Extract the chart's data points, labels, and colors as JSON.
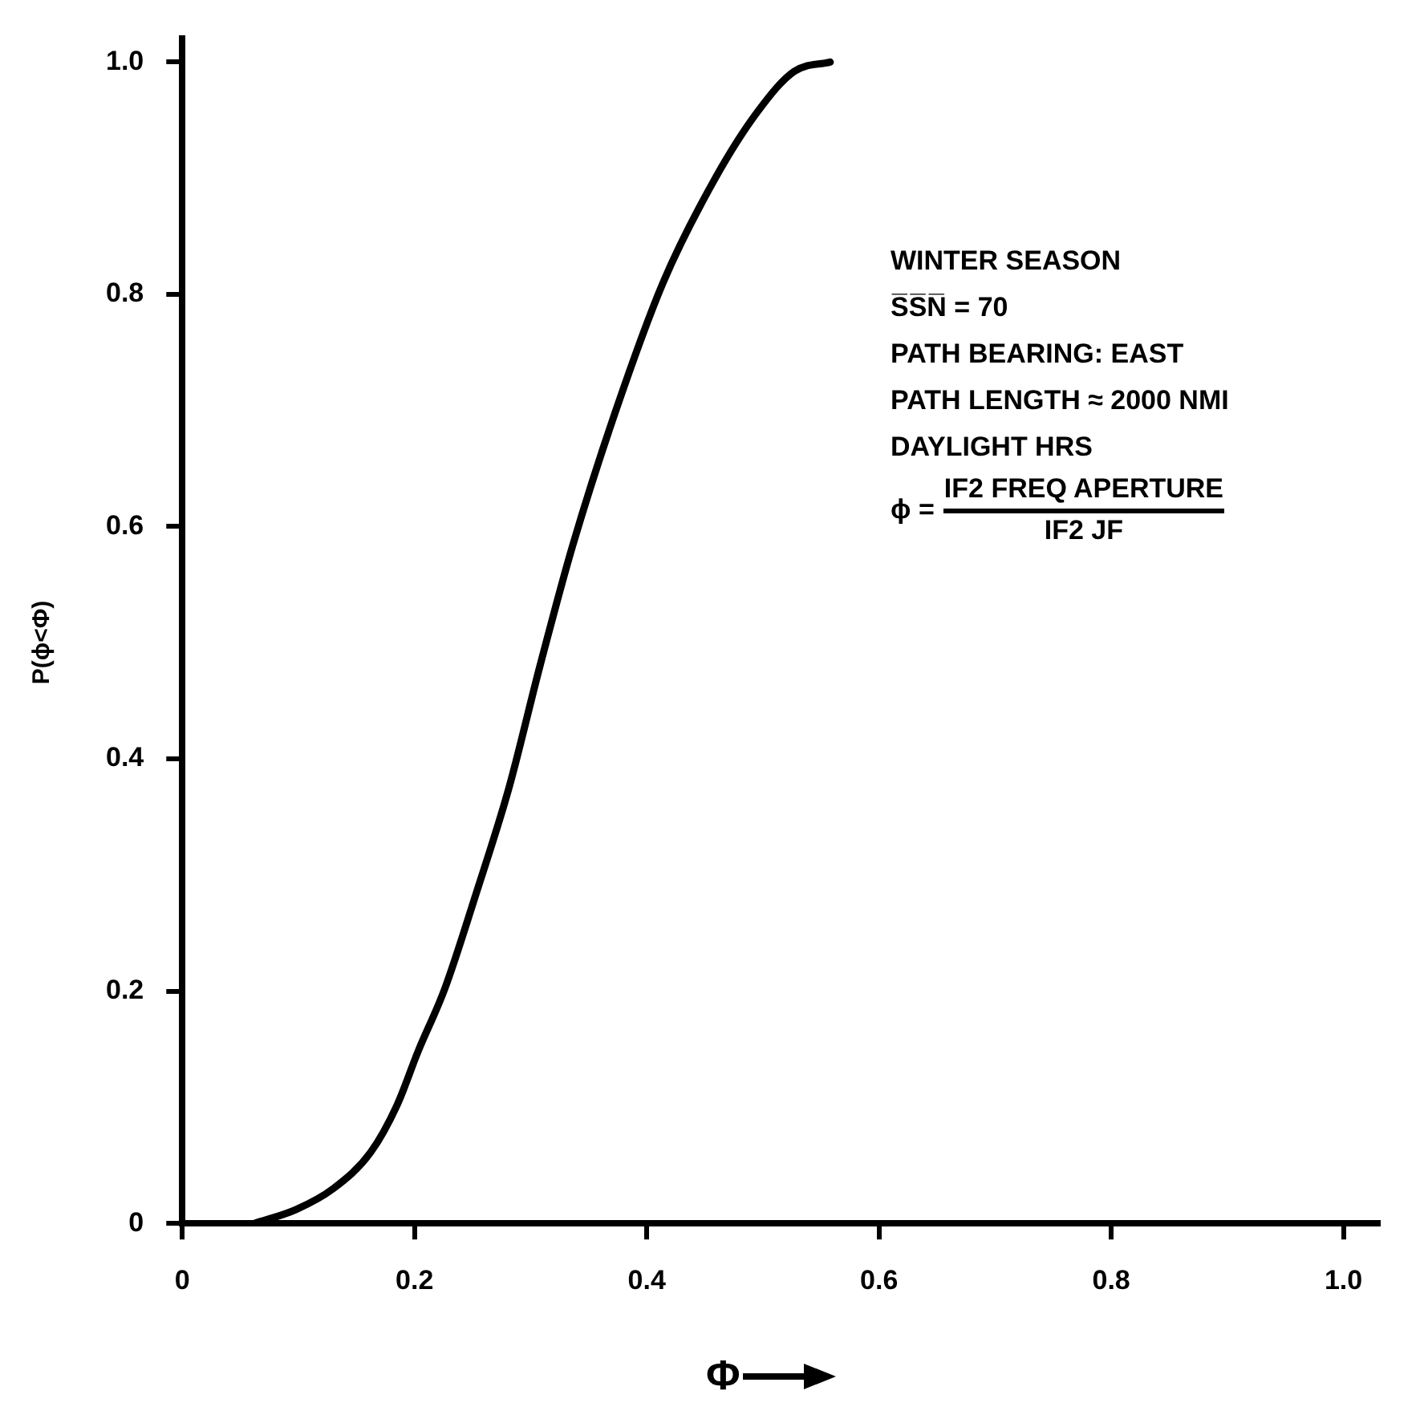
{
  "chart_data": {
    "type": "line",
    "xlabel": "Φ",
    "ylabel": "P(ϕ<Φ)",
    "xlim": [
      0,
      1.03
    ],
    "ylim": [
      0,
      1.02
    ],
    "xticks": [
      0,
      0.2,
      0.4,
      0.6,
      0.8,
      {
        "value": 1,
        "label": "1.0"
      }
    ],
    "yticks": [
      0,
      0.2,
      0.4,
      0.6,
      0.8,
      {
        "value": 1,
        "label": "1.0"
      }
    ],
    "grid": false,
    "legend": false,
    "marker": "none",
    "line_style": "solid",
    "series": [
      {
        "color": "#000000",
        "x": [
          0.062,
          0.098,
          0.13,
          0.162,
          0.185,
          0.203,
          0.226,
          0.253,
          0.281,
          0.308,
          0.336,
          0.372,
          0.414,
          0.459,
          0.496,
          0.527,
          0.558
        ],
        "values": [
          0,
          0.012,
          0.03,
          0.061,
          0.102,
          0.148,
          0.202,
          0.284,
          0.374,
          0.48,
          0.583,
          0.696,
          0.81,
          0.9,
          0.958,
          0.992,
          1.0
        ]
      }
    ],
    "annotations": [
      "WINTER SEASON",
      "S̅S̅N̅ = 70",
      "PATH BEARING: EAST",
      "PATH LENGTH ≈ 2000 NMI",
      "DAYLIGHT HRS",
      "ϕ =",
      "IF2 FREQ APERTURE",
      "IF2 JF"
    ]
  }
}
